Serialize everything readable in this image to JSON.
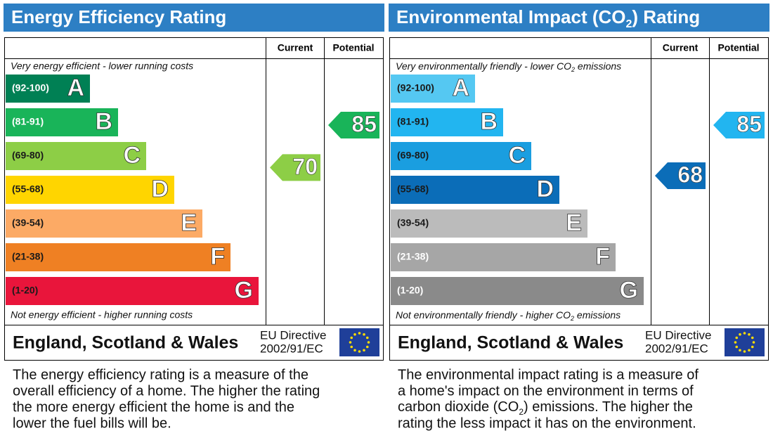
{
  "panels": [
    {
      "title": "Energy Efficiency Rating",
      "columns": [
        "Current",
        "Potential"
      ],
      "top_note": "Very energy efficient - lower running costs",
      "bottom_note": "Not energy efficient - higher running costs",
      "bands": [
        {
          "range": {
            "min": 92,
            "max": 100,
            "label": "(92-100)"
          },
          "letter": "A",
          "color": "#008054",
          "text_color": "#ffffff"
        },
        {
          "range": {
            "min": 81,
            "max": 91,
            "label": "(81-91)"
          },
          "letter": "B",
          "color": "#19b459",
          "text_color": "#ffffff"
        },
        {
          "range": {
            "min": 69,
            "max": 80,
            "label": "(69-80)"
          },
          "letter": "C",
          "color": "#8dce46",
          "text_color": "#1a1a1a"
        },
        {
          "range": {
            "min": 55,
            "max": 68,
            "label": "(55-68)"
          },
          "letter": "D",
          "color": "#ffd500",
          "text_color": "#1a1a1a"
        },
        {
          "range": {
            "min": 39,
            "max": 54,
            "label": "(39-54)"
          },
          "letter": "E",
          "color": "#fcaa65",
          "text_color": "#1a1a1a"
        },
        {
          "range": {
            "min": 21,
            "max": 38,
            "label": "(21-38)"
          },
          "letter": "F",
          "color": "#ef8023",
          "text_color": "#1a1a1a"
        },
        {
          "range": {
            "min": 1,
            "max": 20,
            "label": "(1-20)"
          },
          "letter": "G",
          "color": "#e9153b",
          "text_color": "#1a1a1a"
        }
      ],
      "current": 70,
      "potential": 85,
      "footer": {
        "region": "England, Scotland & Wales",
        "directive": "EU Directive",
        "directive_code": "2002/91/EC"
      },
      "description": [
        "The energy efficiency rating is a measure of the",
        "overall efficiency of a home. The higher the rating",
        "the more energy efficient the home is and the",
        "lower the fuel bills will be."
      ]
    },
    {
      "title": [
        "Environmental Impact (CO",
        "2",
        ") Rating"
      ],
      "columns": [
        "Current",
        "Potential"
      ],
      "top_note": [
        "Very environmentally friendly - lower CO",
        "2",
        " emissions"
      ],
      "bottom_note": [
        "Not environmentally friendly - higher CO",
        "2",
        " emissions"
      ],
      "bands": [
        {
          "range": {
            "min": 92,
            "max": 100,
            "label": "(92-100)"
          },
          "letter": "A",
          "color": "#55c8f2",
          "text_color": "#1a1a1a"
        },
        {
          "range": {
            "min": 81,
            "max": 91,
            "label": "(81-91)"
          },
          "letter": "B",
          "color": "#22b5f0",
          "text_color": "#1a1a1a"
        },
        {
          "range": {
            "min": 69,
            "max": 80,
            "label": "(69-80)"
          },
          "letter": "C",
          "color": "#1a9ee0",
          "text_color": "#1a1a1a"
        },
        {
          "range": {
            "min": 55,
            "max": 68,
            "label": "(55-68)"
          },
          "letter": "D",
          "color": "#0b6db8",
          "text_color": "#1a1a1a"
        },
        {
          "range": {
            "min": 39,
            "max": 54,
            "label": "(39-54)"
          },
          "letter": "E",
          "color": "#bbbbbb",
          "text_color": "#1a1a1a"
        },
        {
          "range": {
            "min": 21,
            "max": 38,
            "label": "(21-38)"
          },
          "letter": "F",
          "color": "#a6a6a6",
          "text_color": "#ffffff"
        },
        {
          "range": {
            "min": 1,
            "max": 20,
            "label": "(1-20)"
          },
          "letter": "G",
          "color": "#8a8a8a",
          "text_color": "#ffffff"
        }
      ],
      "current": 68,
      "potential": 85,
      "footer": {
        "region": "England, Scotland & Wales",
        "directive": "EU Directive",
        "directive_code": "2002/91/EC"
      },
      "description": [
        "The environmental impact rating is a measure of",
        "a home's impact on the environment in terms of",
        [
          "carbon dioxide (CO",
          "2",
          ") emissions. The higher the"
        ],
        "rating the less impact it has on the environment."
      ]
    }
  ]
}
